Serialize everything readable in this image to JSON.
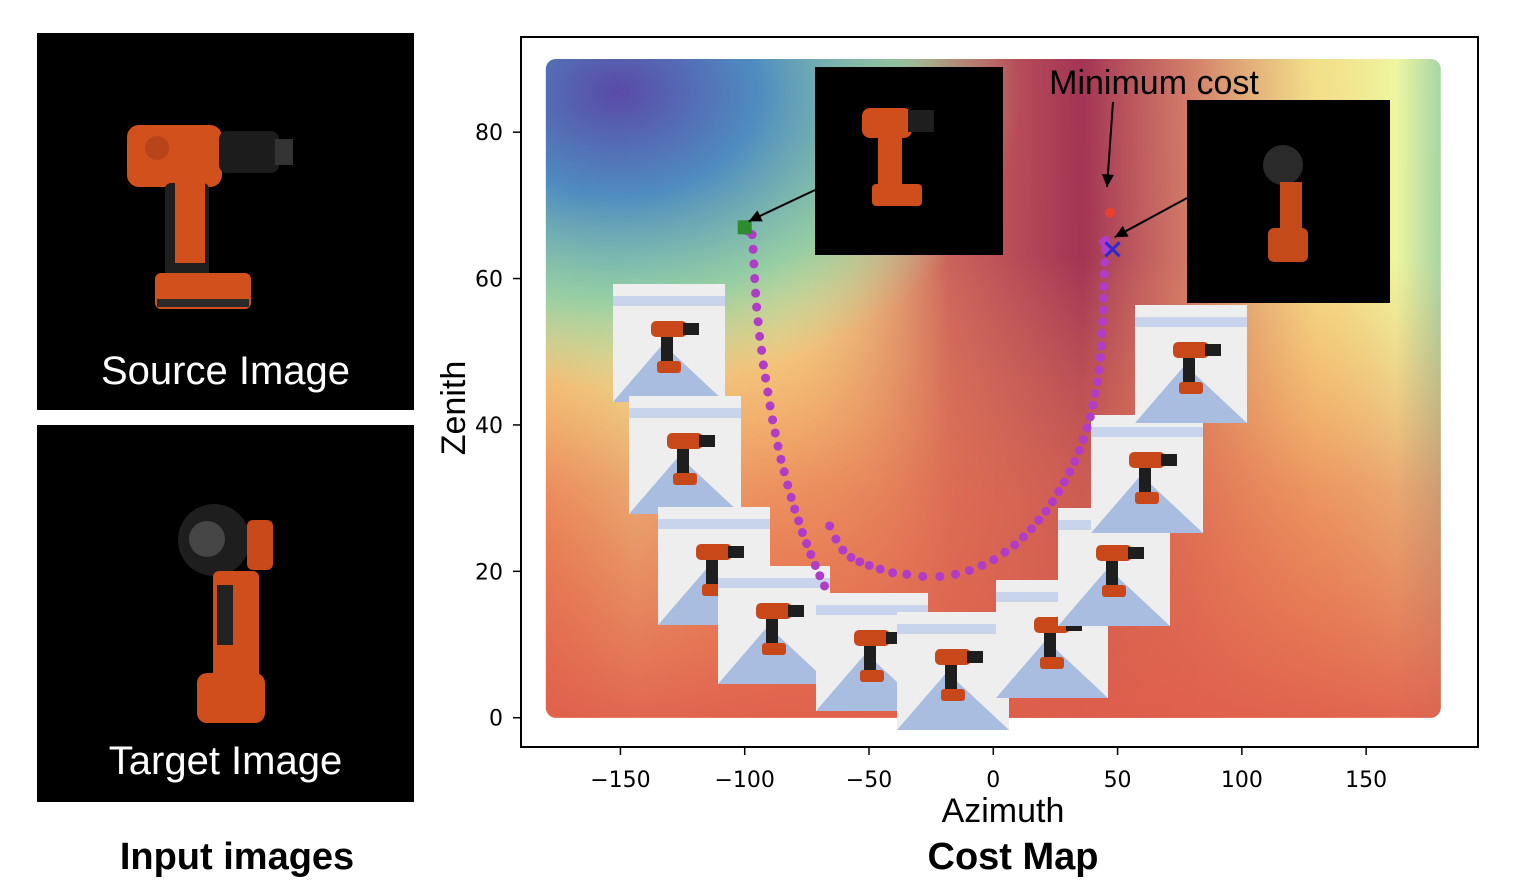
{
  "left_panel": {
    "source_label": "Source Image",
    "target_label": "Target Image",
    "caption": "Input images"
  },
  "chart_data": {
    "type": "heatmap",
    "title": "",
    "caption": "Cost Map",
    "xlabel": "Azimuth",
    "ylabel": "Zenith",
    "xlim": [
      -190,
      195
    ],
    "ylim": [
      -4,
      93
    ],
    "xticks": [
      -150,
      -100,
      -50,
      0,
      50,
      100,
      150
    ],
    "yticks": [
      0,
      20,
      40,
      60,
      80
    ],
    "grid": false,
    "colormap": "Spectral",
    "heatmap_extent": {
      "x": [
        -180,
        180
      ],
      "y": [
        0,
        90
      ]
    },
    "annotation": "Minimum cost",
    "markers": {
      "start": {
        "x": -100,
        "y": 67,
        "shape": "square",
        "color": "#2e8b2e"
      },
      "minimum": {
        "x": 47,
        "y": 69,
        "shape": "dot",
        "color": "#e8402a"
      },
      "end": {
        "x": 48,
        "y": 64,
        "shape": "x",
        "color": "#2a2ad0"
      }
    },
    "trajectory": {
      "color": "#b03cc8",
      "x": [
        -99,
        -97,
        -96.6,
        -96.3,
        -96,
        -95.6,
        -95.2,
        -94.6,
        -94,
        -93.2,
        -92.5,
        -91.6,
        -90.7,
        -89.8,
        -88.8,
        -87.7,
        -86.6,
        -85.4,
        -84.1,
        -82.7,
        -81.3,
        -79.9,
        -78.3,
        -76.8,
        -75.1,
        -73.4,
        -71.6,
        -69.8,
        -67.9,
        -65.8,
        -63.3,
        -60.5,
        -57.2,
        -53.7,
        -49.9,
        -45.5,
        -40.5,
        -34.8,
        -28.4,
        -21.5,
        -15.2,
        -9.6,
        -4.5,
        0.2,
        4.7,
        8.6,
        12.1,
        15.4,
        18.3,
        21.2,
        23.8,
        26.3,
        28.6,
        30.8,
        32.8,
        34.6,
        36.2,
        37.7,
        39,
        40.1,
        41.1,
        41.9,
        42.6,
        43.1,
        43.5,
        43.8,
        44,
        44.2,
        44.3,
        44.5,
        44.7,
        44.9,
        45.1,
        45.3,
        45.3,
        44.4
      ],
      "y": [
        66.5,
        66,
        64,
        62,
        60,
        58,
        56.1,
        54.1,
        52.1,
        50.2,
        48.2,
        46.4,
        44.5,
        42.6,
        40.7,
        38.9,
        37.1,
        35.3,
        33.6,
        31.8,
        30.1,
        28.5,
        26.9,
        25.3,
        23.8,
        22.3,
        20.8,
        19.4,
        18,
        26.2,
        24.4,
        22.9,
        21.9,
        21.3,
        20.8,
        20.3,
        19.8,
        19.6,
        19.3,
        19.3,
        19.6,
        20.1,
        20.8,
        21.6,
        22.6,
        23.6,
        24.7,
        25.8,
        27,
        28.2,
        29.5,
        30.9,
        32.2,
        33.6,
        35,
        36.5,
        38,
        39.6,
        41.1,
        42.7,
        44.3,
        45.9,
        47.5,
        49.2,
        50.8,
        52.5,
        54.1,
        55.7,
        57.3,
        58.9,
        60.6,
        62.2,
        63.9,
        65.2,
        64.6,
        65
      ]
    }
  }
}
